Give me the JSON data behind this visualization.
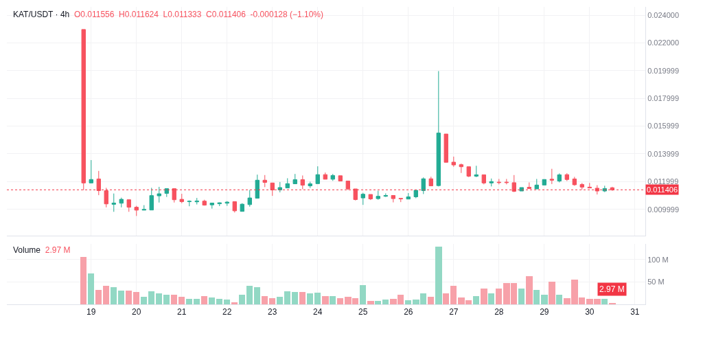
{
  "chart_data": [
    {
      "type": "candlestick",
      "title": "KAT/USDT · 4h",
      "annotations": [
        "O0.011556",
        "H0.011624",
        "L0.011333",
        "C0.011406",
        "-0.000128 (−1.10%)"
      ],
      "x": [
        18.833,
        19,
        19.167,
        19.333,
        19.5,
        19.667,
        19.833,
        20,
        20.167,
        20.333,
        20.5,
        20.667,
        20.833,
        21,
        21.167,
        21.333,
        21.5,
        21.667,
        21.833,
        22,
        22.167,
        22.333,
        22.5,
        22.667,
        22.833,
        23,
        23.167,
        23.333,
        23.5,
        23.667,
        23.833,
        24,
        24.167,
        24.333,
        24.5,
        24.667,
        24.833,
        25,
        25.167,
        25.333,
        25.5,
        25.667,
        25.833,
        26,
        26.167,
        26.333,
        26.5,
        26.667,
        26.833,
        27,
        27.167,
        27.333,
        27.5,
        27.667,
        27.833,
        28,
        28.167,
        28.333,
        28.5,
        28.667,
        28.833,
        29,
        29.167,
        29.333,
        29.5,
        29.667,
        29.833,
        30,
        30.167,
        30.333,
        30.5
      ],
      "ohlc": [
        [
          0.02297,
          0.02297,
          0.01138,
          0.0119
        ],
        [
          0.0119,
          0.01355,
          0.0119,
          0.01215
        ],
        [
          0.01219,
          0.01277,
          0.01102,
          0.01135
        ],
        [
          0.01134,
          0.01155,
          0.01014,
          0.01039
        ],
        [
          0.01036,
          0.01114,
          0.00982,
          0.01045
        ],
        [
          0.01044,
          0.01084,
          0.01014,
          0.01072
        ],
        [
          0.01069,
          0.01069,
          0.00982,
          0.01015
        ],
        [
          0.01015,
          0.01025,
          0.00952,
          0.00994
        ],
        [
          0.00994,
          0.0103,
          0.00994,
          0.00999
        ],
        [
          0.00995,
          0.01155,
          0.00995,
          0.01099
        ],
        [
          0.01097,
          0.01162,
          0.01049,
          0.01112
        ],
        [
          0.01115,
          0.01149,
          0.01089,
          0.01149
        ],
        [
          0.01149,
          0.01149,
          0.01049,
          0.01069
        ],
        [
          0.01072,
          0.01112,
          0.01044,
          0.01055
        ],
        [
          0.01055,
          0.01064,
          0.01022,
          0.01058
        ],
        [
          0.01054,
          0.01082,
          0.01035,
          0.0106
        ],
        [
          0.01059,
          0.01069,
          0.01027,
          0.0103
        ],
        [
          0.01032,
          0.01045,
          0.01005,
          0.01045
        ],
        [
          0.0104,
          0.0105,
          0.01023,
          0.01047
        ],
        [
          0.01044,
          0.01059,
          0.01025,
          0.01052
        ],
        [
          0.01055,
          0.01055,
          0.00977,
          0.00989
        ],
        [
          0.00985,
          0.01044,
          0.00985,
          0.01037
        ],
        [
          0.01034,
          0.01139,
          0.01019,
          0.01082
        ],
        [
          0.0108,
          0.0125,
          0.0108,
          0.0121
        ],
        [
          0.0121,
          0.01247,
          0.0116,
          0.01194
        ],
        [
          0.0119,
          0.0119,
          0.01097,
          0.0114
        ],
        [
          0.0114,
          0.01197,
          0.01122,
          0.01157
        ],
        [
          0.01154,
          0.01224,
          0.01154,
          0.01185
        ],
        [
          0.01184,
          0.01255,
          0.01184,
          0.01214
        ],
        [
          0.01214,
          0.01244,
          0.01144,
          0.01174
        ],
        [
          0.01169,
          0.01199,
          0.01154,
          0.01184
        ],
        [
          0.01185,
          0.0131,
          0.01185,
          0.0125
        ],
        [
          0.0125,
          0.01265,
          0.01217,
          0.01217
        ],
        [
          0.01217,
          0.01255,
          0.01205,
          0.01244
        ],
        [
          0.01242,
          0.01242,
          0.01202,
          0.01204
        ],
        [
          0.01204,
          0.01204,
          0.01139,
          0.01147
        ],
        [
          0.01147,
          0.01147,
          0.01064,
          0.0107
        ],
        [
          0.01082,
          0.01119,
          0.01032,
          0.01109
        ],
        [
          0.01107,
          0.01107,
          0.01067,
          0.01075
        ],
        [
          0.01077,
          0.01134,
          0.01069,
          0.01094
        ],
        [
          0.01094,
          0.01115,
          0.01089,
          0.011
        ],
        [
          0.011,
          0.011,
          0.0105,
          0.01077
        ],
        [
          0.01079,
          0.01079,
          0.01052,
          0.01075
        ],
        [
          0.01074,
          0.01117,
          0.01074,
          0.0109
        ],
        [
          0.0109,
          0.01137,
          0.0108,
          0.01137
        ],
        [
          0.01135,
          0.0123,
          0.0111,
          0.0122
        ],
        [
          0.0122,
          0.01235,
          0.01169,
          0.01169
        ],
        [
          0.01171,
          0.01997,
          0.01165,
          0.0155
        ],
        [
          0.01543,
          0.01543,
          0.01339,
          0.01339
        ],
        [
          0.0134,
          0.0138,
          0.01307,
          0.0132
        ],
        [
          0.01322,
          0.0133,
          0.01262,
          0.01307
        ],
        [
          0.01307,
          0.01307,
          0.01232,
          0.01239
        ],
        [
          0.01239,
          0.01314,
          0.01232,
          0.01249
        ],
        [
          0.01249,
          0.01249,
          0.0118,
          0.0119
        ],
        [
          0.0119,
          0.01222,
          0.01165,
          0.012
        ],
        [
          0.01196,
          0.01219,
          0.0118,
          0.01193
        ],
        [
          0.01196,
          0.01219,
          0.0118,
          0.01193
        ],
        [
          0.01192,
          0.01247,
          0.01124,
          0.0113
        ],
        [
          0.01132,
          0.01157,
          0.01132,
          0.01157
        ],
        [
          0.01159,
          0.01194,
          0.01149,
          0.01149
        ],
        [
          0.01147,
          0.01219,
          0.01147,
          0.01175
        ],
        [
          0.01175,
          0.01215,
          0.01175,
          0.01215
        ],
        [
          0.01217,
          0.01292,
          0.01182,
          0.0121
        ],
        [
          0.01204,
          0.01259,
          0.01194,
          0.01249
        ],
        [
          0.0125,
          0.0126,
          0.01204,
          0.01215
        ],
        [
          0.01219,
          0.01234,
          0.0117,
          0.01177
        ],
        [
          0.01179,
          0.0119,
          0.01142,
          0.0116
        ],
        [
          0.0116,
          0.0119,
          0.01154,
          0.01154
        ],
        [
          0.01152,
          0.01174,
          0.01107,
          0.01132
        ],
        [
          0.01132,
          0.0117,
          0.01124,
          0.0115
        ],
        [
          0.011556,
          0.011624,
          0.011333,
          0.011406
        ]
      ],
      "xlim": [
        17.14,
        31.23
      ],
      "xticks": [
        19,
        20,
        21,
        22,
        23,
        24,
        25,
        26,
        27,
        28,
        29,
        30,
        31
      ],
      "ylim": [
        0.0081,
        0.0246
      ],
      "yticks": [
        {
          "value": 0.009999,
          "label": "0.009999"
        },
        {
          "value": 0.011999,
          "label": "0.011999"
        },
        {
          "value": 0.013999,
          "label": "0.013999"
        },
        {
          "value": 0.015999,
          "label": "0.015999"
        },
        {
          "value": 0.017999,
          "label": "0.017999"
        },
        {
          "value": 0.019999,
          "label": "0.019999"
        },
        {
          "value": 0.022,
          "label": "0.022000"
        },
        {
          "value": 0.024,
          "label": "0.024000"
        }
      ],
      "ref_lines": [
        {
          "axis": "y",
          "value": 0.011406,
          "label": "0.011406",
          "color": "#f23645",
          "line_style": "dotted"
        }
      ],
      "grid": true,
      "tick_labels": "y"
    },
    {
      "type": "bar",
      "title": "Volume",
      "subtitle": "2.97 M",
      "x": [
        18.833,
        19,
        19.167,
        19.333,
        19.5,
        19.667,
        19.833,
        20,
        20.167,
        20.333,
        20.5,
        20.667,
        20.833,
        21,
        21.167,
        21.333,
        21.5,
        21.667,
        21.833,
        22,
        22.167,
        22.333,
        22.5,
        22.667,
        22.833,
        23,
        23.167,
        23.333,
        23.5,
        23.667,
        23.833,
        24,
        24.167,
        24.333,
        24.5,
        24.667,
        24.833,
        25,
        25.167,
        25.333,
        25.5,
        25.667,
        25.833,
        26,
        26.167,
        26.333,
        26.5,
        26.667,
        26.833,
        27,
        27.167,
        27.333,
        27.5,
        27.667,
        27.833,
        28,
        28.167,
        28.333,
        28.5,
        28.667,
        28.833,
        29,
        29.167,
        29.333,
        29.5,
        29.667,
        29.833,
        30,
        30.167,
        30.333,
        30.5
      ],
      "values": [
        106,
        69,
        32,
        41,
        38,
        30,
        31,
        27,
        17,
        29,
        24,
        21,
        21,
        17,
        13,
        13,
        19,
        16,
        13,
        10,
        5,
        22,
        41,
        38,
        19,
        14,
        17,
        29,
        27,
        27,
        25,
        26,
        18,
        18,
        14,
        17,
        14,
        43,
        7,
        7,
        10,
        13,
        21,
        9,
        10,
        24,
        17,
        129,
        25,
        42,
        15,
        9,
        18,
        35,
        25,
        36,
        47,
        47,
        35,
        63,
        32,
        22,
        50,
        22,
        14,
        56,
        16,
        12,
        12,
        13,
        2.97
      ],
      "colors": [
        "#f7a1a9",
        "#92d8c4",
        "#f7a1a9",
        "#f7a1a9",
        "#92d8c4",
        "#92d8c4",
        "#f7a1a9",
        "#f7a1a9",
        "#92d8c4",
        "#92d8c4",
        "#92d8c4",
        "#92d8c4",
        "#f7a1a9",
        "#f7a1a9",
        "#92d8c4",
        "#92d8c4",
        "#f7a1a9",
        "#92d8c4",
        "#92d8c4",
        "#92d8c4",
        "#f7a1a9",
        "#92d8c4",
        "#92d8c4",
        "#92d8c4",
        "#f7a1a9",
        "#f7a1a9",
        "#92d8c4",
        "#92d8c4",
        "#92d8c4",
        "#f7a1a9",
        "#92d8c4",
        "#92d8c4",
        "#f7a1a9",
        "#92d8c4",
        "#f7a1a9",
        "#f7a1a9",
        "#f7a1a9",
        "#92d8c4",
        "#f7a1a9",
        "#92d8c4",
        "#92d8c4",
        "#f7a1a9",
        "#f7a1a9",
        "#92d8c4",
        "#92d8c4",
        "#92d8c4",
        "#f7a1a9",
        "#92d8c4",
        "#f7a1a9",
        "#f7a1a9",
        "#f7a1a9",
        "#f7a1a9",
        "#92d8c4",
        "#f7a1a9",
        "#92d8c4",
        "#f7a1a9",
        "#f7a1a9",
        "#f7a1a9",
        "#92d8c4",
        "#f7a1a9",
        "#92d8c4",
        "#92d8c4",
        "#f7a1a9",
        "#92d8c4",
        "#f7a1a9",
        "#f7a1a9",
        "#f7a1a9",
        "#f7a1a9",
        "#f7a1a9",
        "#92d8c4",
        "#f7a1a9"
      ],
      "value_labels": [
        null,
        null,
        null,
        null,
        null,
        null,
        null,
        null,
        null,
        null,
        null,
        null,
        null,
        null,
        null,
        null,
        null,
        null,
        null,
        null,
        null,
        null,
        null,
        null,
        null,
        null,
        null,
        null,
        null,
        null,
        null,
        null,
        null,
        null,
        null,
        null,
        null,
        null,
        null,
        null,
        null,
        null,
        null,
        null,
        null,
        null,
        null,
        null,
        null,
        null,
        null,
        null,
        null,
        null,
        null,
        null,
        null,
        null,
        null,
        null,
        null,
        null,
        null,
        null,
        null,
        null,
        null,
        null,
        null,
        null,
        "2.97 M"
      ],
      "xlim": [
        17.14,
        31.23
      ],
      "xticks": [
        19,
        20,
        21,
        22,
        23,
        24,
        25,
        26,
        27,
        28,
        29,
        30,
        31
      ],
      "ylim": [
        0,
        135
      ],
      "yticks": [
        {
          "value": 50,
          "label": "50 M"
        },
        {
          "value": 100,
          "label": "100 M"
        }
      ],
      "grid": true
    }
  ]
}
